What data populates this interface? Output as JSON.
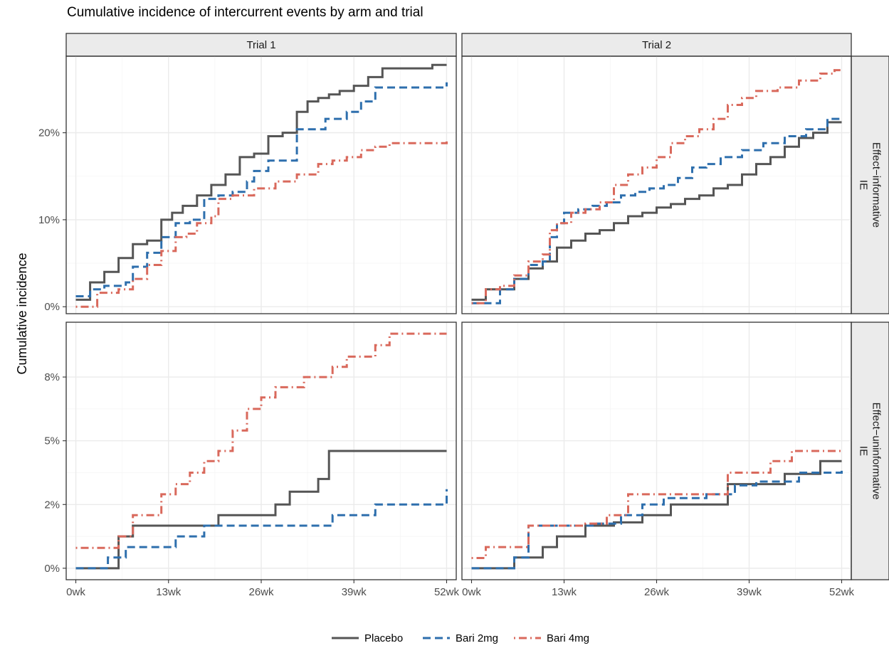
{
  "chart_data": {
    "type": "line",
    "title": "Cumulative incidence of intercurrent events by arm and trial",
    "ylabel": "Cumulative incidence",
    "xlabel": "",
    "x_ticks": [
      {
        "value": 0,
        "label": "0wk"
      },
      {
        "value": 13,
        "label": "13wk"
      },
      {
        "value": 26,
        "label": "26wk"
      },
      {
        "value": 39,
        "label": "39wk"
      },
      {
        "value": 52,
        "label": "52wk"
      }
    ],
    "columns": [
      "Trial 1",
      "Trial 2"
    ],
    "rows": [
      "Effect−informative IE",
      "Effect−uninformative IE"
    ],
    "legend_position": "bottom",
    "grid": true,
    "colors": {
      "Placebo": "#555555",
      "Bari 2mg": "#2e6fad",
      "Bari 4mg": "#d9695c"
    },
    "legend": [
      {
        "name": "Placebo",
        "color": "#555555",
        "dash": "solid"
      },
      {
        "name": "Bari 2mg",
        "color": "#2e6fad",
        "dash": "dashed"
      },
      {
        "name": "Bari 4mg",
        "color": "#d9695c",
        "dash": "dotdash"
      }
    ],
    "rows_meta": [
      {
        "ylim": [
          -0.8,
          28.8
        ],
        "y_ticks": [
          {
            "value": 0,
            "label": "0%"
          },
          {
            "value": 10,
            "label": "10%"
          },
          {
            "value": 20,
            "label": "20%"
          }
        ]
      },
      {
        "ylim": [
          -0.45,
          9.65
        ],
        "y_ticks": [
          {
            "value": 0,
            "label": "0%"
          },
          {
            "value": 2.5,
            "label": "2%"
          },
          {
            "value": 5,
            "label": "5%"
          },
          {
            "value": 7.5,
            "label": "8%"
          }
        ]
      }
    ],
    "panels": [
      {
        "row": 0,
        "col": 0,
        "series": [
          {
            "name": "Placebo",
            "steps": [
              [
                0,
                0.8
              ],
              [
                2,
                2.8
              ],
              [
                4,
                4
              ],
              [
                6,
                5.6
              ],
              [
                8,
                7.2
              ],
              [
                10,
                7.6
              ],
              [
                12,
                10
              ],
              [
                13.5,
                10.8
              ],
              [
                15,
                11.6
              ],
              [
                17,
                12.8
              ],
              [
                19,
                14
              ],
              [
                21,
                15.2
              ],
              [
                23,
                17.2
              ],
              [
                25,
                17.6
              ],
              [
                27,
                19.6
              ],
              [
                29,
                20
              ],
              [
                31,
                22.4
              ],
              [
                32.5,
                23.6
              ],
              [
                34,
                24
              ],
              [
                35.5,
                24.4
              ],
              [
                37,
                24.8
              ],
              [
                39,
                25.4
              ],
              [
                41,
                26.4
              ],
              [
                43,
                27.4
              ],
              [
                50,
                27.8
              ],
              [
                52,
                27.8
              ]
            ]
          },
          {
            "name": "Bari 2mg",
            "steps": [
              [
                0,
                1.2
              ],
              [
                2,
                2
              ],
              [
                4,
                2.4
              ],
              [
                7,
                2.8
              ],
              [
                8,
                4.6
              ],
              [
                10,
                6.2
              ],
              [
                12,
                8
              ],
              [
                14,
                9.6
              ],
              [
                16,
                10
              ],
              [
                18,
                12.4
              ],
              [
                20,
                12.8
              ],
              [
                22,
                13.2
              ],
              [
                24,
                14.4
              ],
              [
                25,
                15.6
              ],
              [
                27,
                16.8
              ],
              [
                31,
                20.4
              ],
              [
                35,
                21.6
              ],
              [
                38,
                22.4
              ],
              [
                40,
                23.6
              ],
              [
                42,
                25.2
              ],
              [
                52,
                25.8
              ]
            ]
          },
          {
            "name": "Bari 4mg",
            "steps": [
              [
                0,
                0
              ],
              [
                3,
                1.6
              ],
              [
                6,
                2
              ],
              [
                8,
                3.2
              ],
              [
                10,
                4.8
              ],
              [
                12,
                6.4
              ],
              [
                14,
                8
              ],
              [
                15.5,
                8.4
              ],
              [
                17,
                9.6
              ],
              [
                19,
                10.4
              ],
              [
                20,
                12.4
              ],
              [
                22,
                12.8
              ],
              [
                25,
                13.6
              ],
              [
                28,
                14.4
              ],
              [
                31,
                15.2
              ],
              [
                34,
                16.4
              ],
              [
                36,
                16.8
              ],
              [
                38,
                17.2
              ],
              [
                40,
                18
              ],
              [
                42,
                18.4
              ],
              [
                44,
                18.8
              ],
              [
                52,
                19
              ]
            ]
          }
        ]
      },
      {
        "row": 0,
        "col": 1,
        "series": [
          {
            "name": "Placebo",
            "steps": [
              [
                0,
                0.8
              ],
              [
                2,
                2
              ],
              [
                4,
                2
              ],
              [
                6,
                3.2
              ],
              [
                8,
                4.4
              ],
              [
                10,
                5.2
              ],
              [
                12,
                6.8
              ],
              [
                14,
                7.6
              ],
              [
                16,
                8.4
              ],
              [
                18,
                8.8
              ],
              [
                20,
                9.6
              ],
              [
                22,
                10.4
              ],
              [
                24,
                10.8
              ],
              [
                26,
                11.4
              ],
              [
                28,
                11.8
              ],
              [
                30,
                12.4
              ],
              [
                32,
                12.8
              ],
              [
                34,
                13.6
              ],
              [
                36,
                14
              ],
              [
                38,
                15.2
              ],
              [
                40,
                16.4
              ],
              [
                42,
                17.2
              ],
              [
                44,
                18.4
              ],
              [
                46,
                19.4
              ],
              [
                48,
                20
              ],
              [
                50,
                21.2
              ],
              [
                52,
                21.2
              ]
            ]
          },
          {
            "name": "Bari 2mg",
            "steps": [
              [
                0,
                0.4
              ],
              [
                4,
                2
              ],
              [
                6,
                3.2
              ],
              [
                8,
                4.8
              ],
              [
                10,
                5.2
              ],
              [
                11,
                8
              ],
              [
                12,
                9.6
              ],
              [
                13,
                10.8
              ],
              [
                15,
                11.2
              ],
              [
                17,
                11.6
              ],
              [
                19,
                12
              ],
              [
                21,
                12.8
              ],
              [
                23,
                13.2
              ],
              [
                25,
                13.6
              ],
              [
                27,
                14
              ],
              [
                29,
                14.8
              ],
              [
                31,
                16
              ],
              [
                33,
                16.4
              ],
              [
                35,
                17.2
              ],
              [
                38,
                18
              ],
              [
                41,
                18.8
              ],
              [
                44,
                19.6
              ],
              [
                47,
                20.4
              ],
              [
                50,
                21.6
              ],
              [
                52,
                21.6
              ]
            ]
          },
          {
            "name": "Bari 4mg",
            "steps": [
              [
                0,
                0.4
              ],
              [
                2,
                2
              ],
              [
                4,
                2.4
              ],
              [
                6,
                3.6
              ],
              [
                8,
                5.2
              ],
              [
                10,
                6
              ],
              [
                11,
                8.8
              ],
              [
                12,
                9.6
              ],
              [
                14,
                10.8
              ],
              [
                16,
                11.2
              ],
              [
                18,
                12
              ],
              [
                20,
                14
              ],
              [
                22,
                15.2
              ],
              [
                24,
                16
              ],
              [
                26,
                17.2
              ],
              [
                28,
                18.8
              ],
              [
                30,
                19.6
              ],
              [
                32,
                20.4
              ],
              [
                34,
                21.6
              ],
              [
                36,
                23.2
              ],
              [
                38,
                24
              ],
              [
                40,
                24.8
              ],
              [
                43,
                25.2
              ],
              [
                46,
                26
              ],
              [
                49,
                26.8
              ],
              [
                51,
                27.2
              ],
              [
                52,
                27.2
              ]
            ]
          }
        ]
      },
      {
        "row": 1,
        "col": 0,
        "series": [
          {
            "name": "Placebo",
            "steps": [
              [
                0,
                0
              ],
              [
                6,
                1.25
              ],
              [
                8,
                1.67
              ],
              [
                20,
                2.08
              ],
              [
                28,
                2.5
              ],
              [
                30,
                3
              ],
              [
                34,
                3.5
              ],
              [
                35.5,
                4.6
              ],
              [
                52,
                4.6
              ]
            ]
          },
          {
            "name": "Bari 2mg",
            "steps": [
              [
                0,
                0
              ],
              [
                4,
                0
              ],
              [
                4.5,
                0.42
              ],
              [
                7,
                0.83
              ],
              [
                14,
                1.25
              ],
              [
                18,
                1.67
              ],
              [
                36,
                2.08
              ],
              [
                42,
                2.5
              ],
              [
                50,
                2.5
              ],
              [
                52,
                3.1
              ]
            ]
          },
          {
            "name": "Bari 4mg",
            "steps": [
              [
                0,
                0.8
              ],
              [
                6,
                1.25
              ],
              [
                8,
                2.08
              ],
              [
                12,
                2.9
              ],
              [
                14,
                3.3
              ],
              [
                16,
                3.75
              ],
              [
                18,
                4.2
              ],
              [
                20,
                4.6
              ],
              [
                22,
                5.4
              ],
              [
                24,
                6.25
              ],
              [
                26,
                6.7
              ],
              [
                28,
                7.1
              ],
              [
                32,
                7.5
              ],
              [
                36,
                7.9
              ],
              [
                38,
                8.3
              ],
              [
                42,
                8.75
              ],
              [
                44,
                9.2
              ],
              [
                52,
                9.2
              ]
            ]
          }
        ]
      },
      {
        "row": 1,
        "col": 1,
        "series": [
          {
            "name": "Placebo",
            "steps": [
              [
                0,
                0
              ],
              [
                6,
                0.42
              ],
              [
                10,
                0.83
              ],
              [
                12,
                1.25
              ],
              [
                16,
                1.67
              ],
              [
                20,
                1.8
              ],
              [
                24,
                2.08
              ],
              [
                28,
                2.5
              ],
              [
                36,
                3.3
              ],
              [
                44,
                3.7
              ],
              [
                49,
                4.2
              ],
              [
                52,
                4.2
              ]
            ]
          },
          {
            "name": "Bari 2mg",
            "steps": [
              [
                0,
                0
              ],
              [
                6,
                0.42
              ],
              [
                8,
                1.67
              ],
              [
                14,
                1.67
              ],
              [
                17,
                1.75
              ],
              [
                21,
                2.08
              ],
              [
                24,
                2.5
              ],
              [
                27,
                2.75
              ],
              [
                33,
                2.9
              ],
              [
                37,
                3.25
              ],
              [
                40,
                3.4
              ],
              [
                46,
                3.75
              ],
              [
                52,
                3.9
              ]
            ]
          },
          {
            "name": "Bari 4mg",
            "steps": [
              [
                0,
                0.4
              ],
              [
                2,
                0.83
              ],
              [
                8,
                1.67
              ],
              [
                16,
                1.75
              ],
              [
                19,
                2.08
              ],
              [
                22,
                2.9
              ],
              [
                32,
                2.9
              ],
              [
                36,
                3.75
              ],
              [
                42,
                4.2
              ],
              [
                45,
                4.6
              ],
              [
                52,
                4.6
              ]
            ]
          }
        ]
      }
    ]
  }
}
